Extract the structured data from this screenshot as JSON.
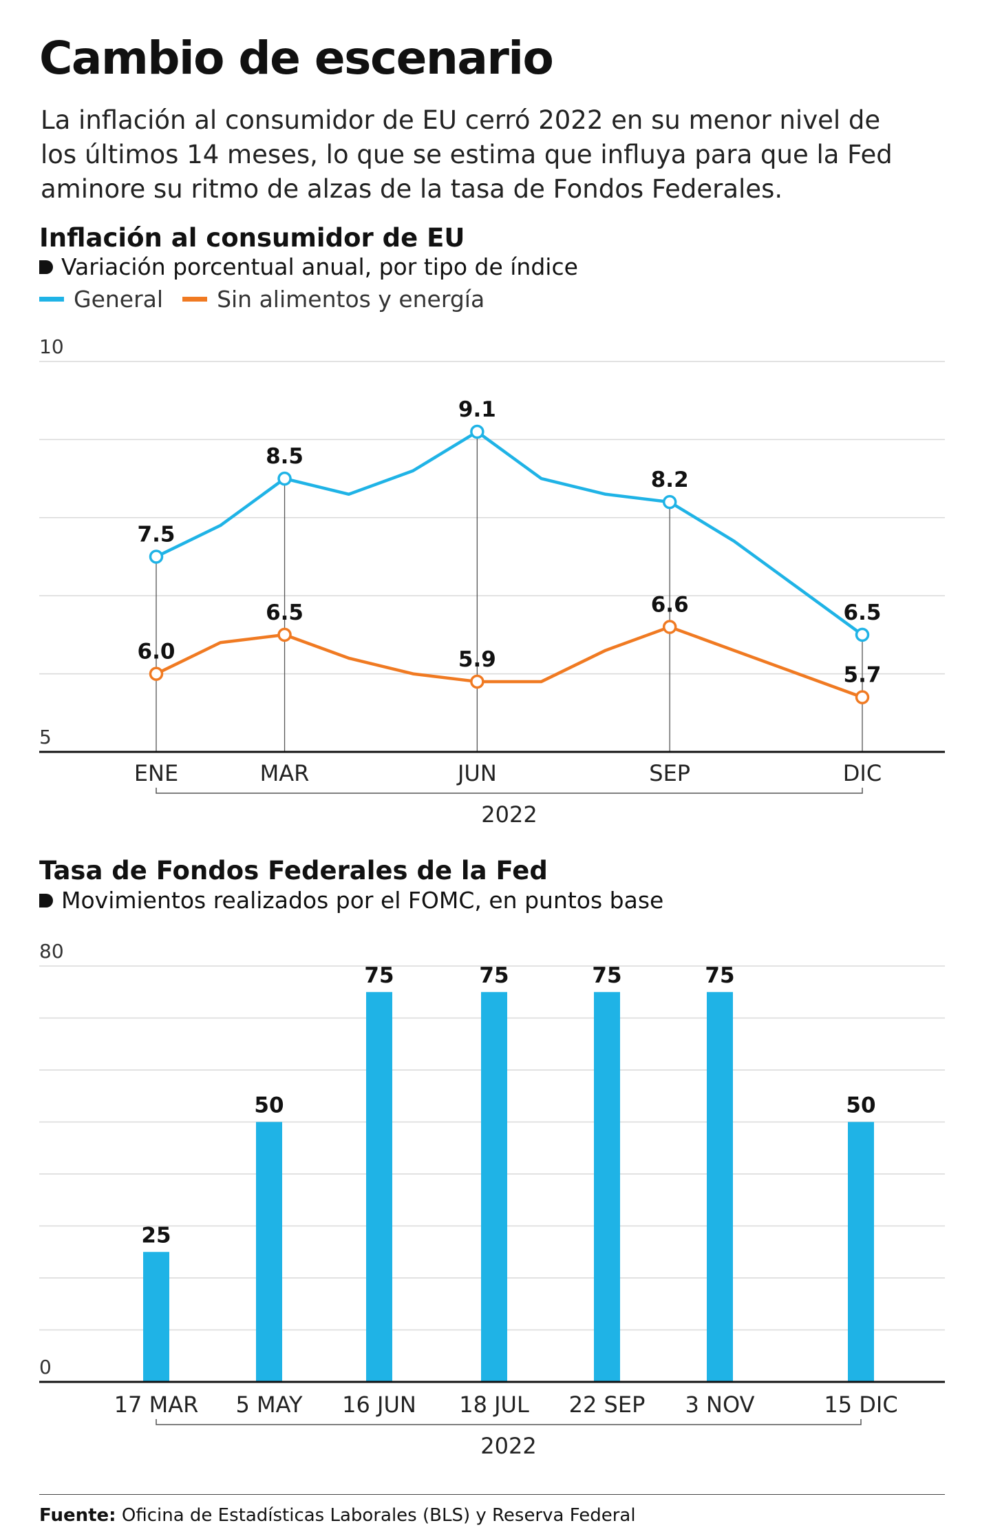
{
  "headline": "Cambio de escenario",
  "dek": "La inflación al consumidor de EU cerró 2022 en su menor nivel de los últimos 14 meses, lo que se estima que influya para que la Fed aminore su ritmo de alzas de la tasa de Fondos Federales.",
  "colors": {
    "general": "#1fb3e6",
    "core": "#f07a22",
    "bars": "#1fb3e6",
    "grid": "#d9d9d9",
    "axis": "#111111"
  },
  "source": {
    "label": "Fuente:",
    "text": "Oficina de Estadísticas Laborales (BLS) y Reserva Federal"
  },
  "chart_data": [
    {
      "type": "line",
      "title": "Inflación al consumidor de EU",
      "subtitle": "Variación porcentual anual, por tipo de índice",
      "ylim": [
        5,
        10
      ],
      "y_ticks": [
        "10",
        "5"
      ],
      "x": [
        1,
        2,
        3,
        4,
        5,
        6,
        7,
        8,
        9,
        10,
        11,
        12
      ],
      "x_tick_labels": [
        {
          "x": 1,
          "label": "ENE"
        },
        {
          "x": 3,
          "label": "MAR"
        },
        {
          "x": 6,
          "label": "JUN"
        },
        {
          "x": 9,
          "label": "SEP"
        },
        {
          "x": 12,
          "label": "DIC"
        }
      ],
      "x_group_label": "2022",
      "grid": true,
      "legend_position": "top-left",
      "series": [
        {
          "name": "General",
          "values": [
            7.5,
            7.9,
            8.5,
            8.3,
            8.6,
            9.1,
            8.5,
            8.3,
            8.2,
            7.7,
            7.1,
            6.5
          ],
          "labels": [
            {
              "x": 1,
              "text": "7.5"
            },
            {
              "x": 3,
              "text": "8.5"
            },
            {
              "x": 6,
              "text": "9.1"
            },
            {
              "x": 9,
              "text": "8.2"
            },
            {
              "x": 12,
              "text": "6.5"
            }
          ]
        },
        {
          "name": "Sin alimentos y energía",
          "values": [
            6.0,
            6.4,
            6.5,
            6.2,
            6.0,
            5.9,
            5.9,
            6.3,
            6.6,
            6.3,
            6.0,
            5.7
          ],
          "labels": [
            {
              "x": 1,
              "text": "6.0"
            },
            {
              "x": 3,
              "text": "6.5"
            },
            {
              "x": 6,
              "text": "5.9"
            },
            {
              "x": 9,
              "text": "6.6"
            },
            {
              "x": 12,
              "text": "5.7"
            }
          ]
        }
      ]
    },
    {
      "type": "bar",
      "title": "Tasa de Fondos Federales de la Fed",
      "subtitle": "Movimientos realizados por el FOMC, en puntos base",
      "ylim": [
        0,
        80
      ],
      "y_ticks": [
        "80",
        "0"
      ],
      "categories": [
        "17 MAR",
        "5 MAY",
        "16 JUN",
        "18 JUL",
        "22 SEP",
        "3 NOV",
        "15 DIC"
      ],
      "values": [
        25,
        50,
        75,
        75,
        75,
        75,
        50
      ],
      "value_labels": [
        "25",
        "50",
        "75",
        "75",
        "75",
        "75",
        "50"
      ],
      "x_group_label": "2022",
      "grid": true
    }
  ]
}
